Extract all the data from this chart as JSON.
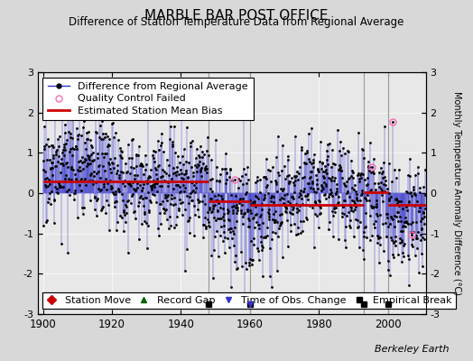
{
  "title": "MARBLE BAR POST OFFICE",
  "subtitle": "Difference of Station Temperature Data from Regional Average",
  "ylabel": "Monthly Temperature Anomaly Difference (°C)",
  "xlabel_years": [
    1900,
    1920,
    1940,
    1960,
    1980,
    2000
  ],
  "ylim": [
    -3,
    3
  ],
  "xlim": [
    1898.5,
    2011
  ],
  "background_color": "#d8d8d8",
  "plot_bg_color": "#e8e8e8",
  "seed": 17,
  "start_year": 1900,
  "end_year": 2011,
  "bias_segments": [
    {
      "start": 1900,
      "end": 1948,
      "bias": 0.3
    },
    {
      "start": 1948,
      "end": 1960,
      "bias": -0.2
    },
    {
      "start": 1960,
      "end": 1993,
      "bias": -0.3
    },
    {
      "start": 1993,
      "end": 2000,
      "bias": 0.02
    },
    {
      "start": 2000,
      "end": 2011,
      "bias": -0.28
    }
  ],
  "empirical_breaks": [
    1948,
    1960,
    1993,
    2000
  ],
  "obs_changes": [
    1960
  ],
  "qc_failed": [
    1955.5,
    1995.5,
    2001.5,
    2007.0
  ],
  "line_color": "#3333cc",
  "dot_color": "#000000",
  "bias_color": "#cc0000",
  "qc_color": "#ff69b4",
  "empirical_break_color": "#aaaaaa",
  "bottom_legend_bg": "#ffffff",
  "legend_fontsize": 8,
  "title_fontsize": 11,
  "subtitle_fontsize": 8.5,
  "watermark": "Berkeley Earth"
}
